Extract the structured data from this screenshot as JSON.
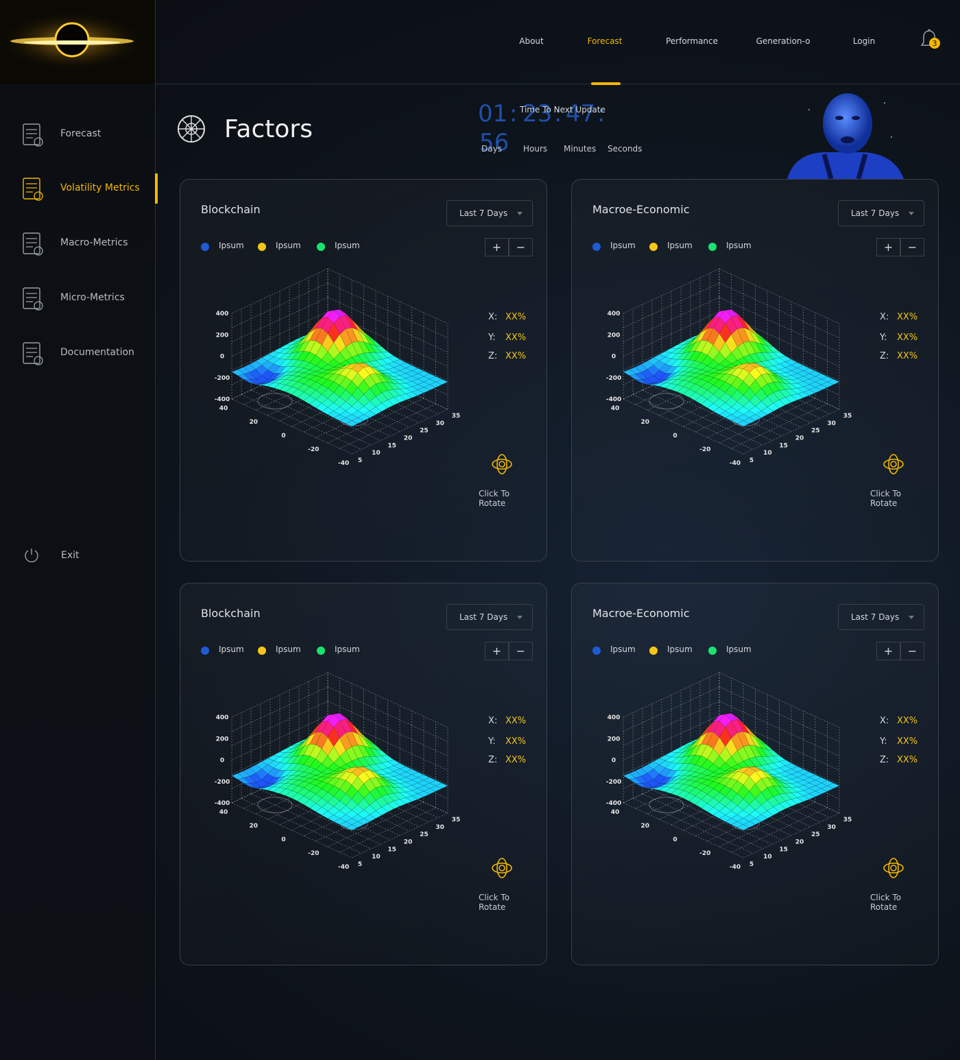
{
  "nav": {
    "items": [
      "About",
      "Forecast",
      "Performance",
      "Generation-o",
      "Login"
    ],
    "active": 1,
    "notifications": 3
  },
  "sidebar": {
    "items": [
      "Forecast",
      "Volatility Metrics",
      "Macro-Metrics",
      "Micro-Metrics",
      "Documentation"
    ],
    "active": 1,
    "exit": "Exit"
  },
  "header": {
    "title": "Factors",
    "countdown_caption": "Time To Next Update",
    "countdown": {
      "values": [
        "01",
        "23",
        "47",
        "56"
      ],
      "separator": ":",
      "units": [
        "Days",
        "Hours",
        "Minutes",
        "Seconds"
      ]
    }
  },
  "cards": [
    {
      "title": "Blockchain",
      "range": "Last 7 Days",
      "legend": [
        {
          "label": "Ipsum",
          "color": "#1e5bd6"
        },
        {
          "label": "Ipsum",
          "color": "#f5c518"
        },
        {
          "label": "Ipsum",
          "color": "#19e36f"
        }
      ],
      "zoom": [
        "+",
        "−"
      ],
      "readouts": [
        {
          "axis": "X:",
          "value": "XX%"
        },
        {
          "axis": "Y:",
          "value": "XX%"
        },
        {
          "axis": "Z:",
          "value": "XX%"
        }
      ],
      "action": "Click To Rotate"
    },
    {
      "title": "Macroe-Economic",
      "range": "Last 7 Days",
      "legend": [
        {
          "label": "Ipsum",
          "color": "#1e5bd6"
        },
        {
          "label": "Ipsum",
          "color": "#f5c518"
        },
        {
          "label": "Ipsum",
          "color": "#19e36f"
        }
      ],
      "zoom": [
        "+",
        "−"
      ],
      "readouts": [
        {
          "axis": "X:",
          "value": "XX%"
        },
        {
          "axis": "Y:",
          "value": "XX%"
        },
        {
          "axis": "Z:",
          "value": "XX%"
        }
      ],
      "action": "Click To Rotate"
    },
    {
      "title": "Blockchain",
      "range": "Last 7 Days",
      "legend": [
        {
          "label": "Ipsum",
          "color": "#1e5bd6"
        },
        {
          "label": "Ipsum",
          "color": "#f5c518"
        },
        {
          "label": "Ipsum",
          "color": "#19e36f"
        }
      ],
      "zoom": [
        "+",
        "−"
      ],
      "readouts": [
        {
          "axis": "X:",
          "value": "XX%"
        },
        {
          "axis": "Y:",
          "value": "XX%"
        },
        {
          "axis": "Z:",
          "value": "XX%"
        }
      ],
      "action": "Click To Rotate"
    },
    {
      "title": "Macroe-Economic",
      "range": "Last 7 Days",
      "legend": [
        {
          "label": "Ipsum",
          "color": "#1e5bd6"
        },
        {
          "label": "Ipsum",
          "color": "#f5c518"
        },
        {
          "label": "Ipsum",
          "color": "#19e36f"
        }
      ],
      "zoom": [
        "+",
        "−"
      ],
      "readouts": [
        {
          "axis": "X:",
          "value": "XX%"
        },
        {
          "axis": "Y:",
          "value": "XX%"
        },
        {
          "axis": "Z:",
          "value": "XX%"
        }
      ],
      "action": "Click To Rotate"
    }
  ],
  "surface_plot": {
    "x_ticks": [
      "40",
      "20",
      "0",
      "-20",
      "-40"
    ],
    "y_ticks": [
      "5",
      "10",
      "15",
      "20",
      "25",
      "30",
      "35"
    ],
    "z_ticks": [
      "400",
      "200",
      "0",
      "-200",
      "-400"
    ]
  }
}
